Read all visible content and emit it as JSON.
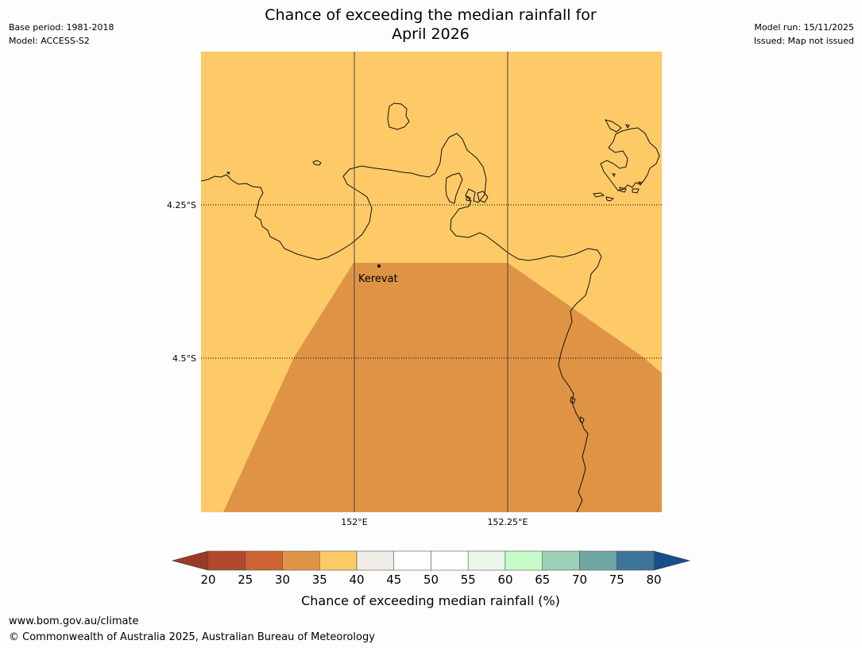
{
  "header": {
    "title_line1": "Chance of exceeding the median rainfall for",
    "title_line2": "April 2026",
    "base_period": "Base period: 1981-2018",
    "model": "Model: ACCESS-S2",
    "model_run": "Model run: 15/11/2025",
    "issued": "Issued: Map not issued"
  },
  "map": {
    "lon_labels": [
      "152°E",
      "152.25°E"
    ],
    "lat_labels": [
      "4.25°S",
      "4.5°S"
    ],
    "place": {
      "name": "Kerevat"
    },
    "zones": [
      {
        "range": "35-40",
        "color": "#fdca67"
      },
      {
        "range": "30-35",
        "color": "#df9445"
      }
    ]
  },
  "colorbar": {
    "title": "Chance of exceeding median rainfall (%)",
    "ticks": [
      "20",
      "25",
      "30",
      "35",
      "40",
      "45",
      "50",
      "55",
      "60",
      "65",
      "70",
      "75",
      "80"
    ],
    "low_extend_color": "#9b3a26",
    "high_extend_color": "#174f8a",
    "segment_colors": [
      "#b0482a",
      "#cb6432",
      "#df9445",
      "#fdca67",
      "#efebe6",
      "#ffffff",
      "#ffffff",
      "#e9f6e8",
      "#c7fbc9",
      "#9bd0b9",
      "#6ea6a4",
      "#3e7497"
    ]
  },
  "footer": {
    "url": "www.bom.gov.au/climate",
    "copyright": "© Commonwealth of Australia 2025, Australian Bureau of Meteorology"
  }
}
